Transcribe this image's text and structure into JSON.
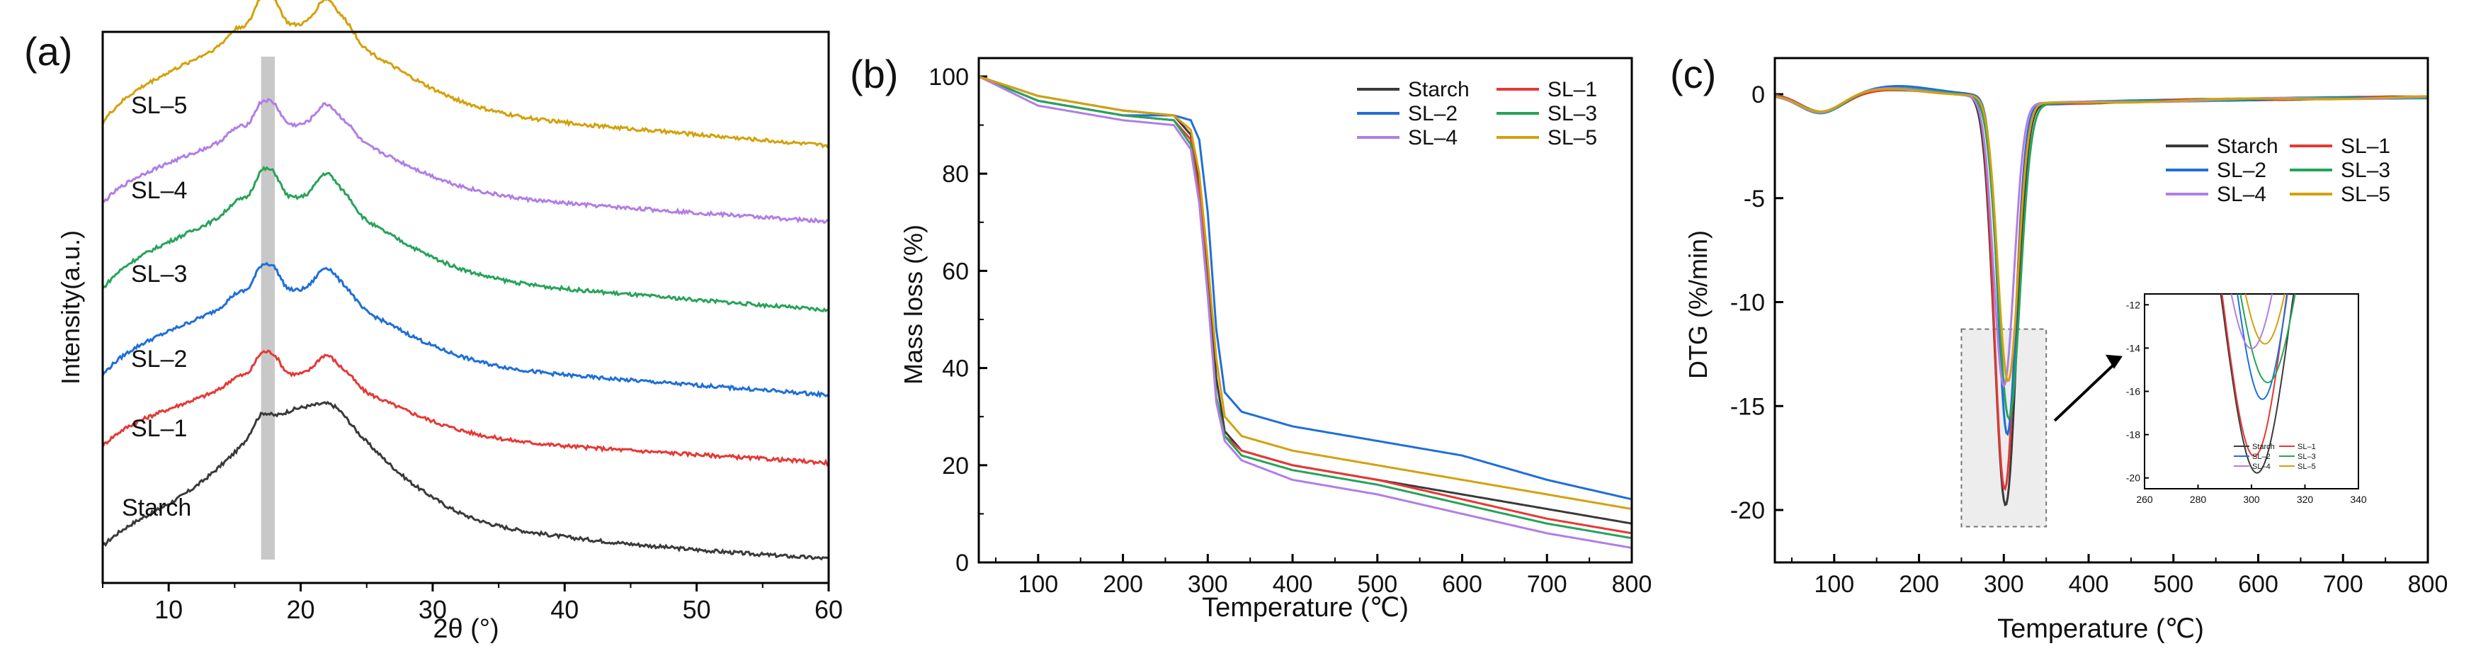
{
  "panels": {
    "a": {
      "label": "(a)"
    },
    "b": {
      "label": "(b)"
    },
    "c": {
      "label": "(c)"
    }
  },
  "colors": {
    "Starch": "#3a3a3a",
    "SL–1": "#e53935",
    "SL–2": "#1e6fd9",
    "SL–3": "#27a35a",
    "SL–4": "#b07ee6",
    "SL–5": "#d4a10c"
  },
  "chart_data": [
    {
      "id": "a",
      "type": "line",
      "title": "",
      "xlabel": "2θ (°)",
      "ylabel": "Intensity(a.u.)",
      "xlim": [
        5,
        60
      ],
      "xticks": [
        10,
        20,
        30,
        40,
        50,
        60
      ],
      "yticks_shown": false,
      "highlight_band_2theta": [
        17.0,
        17.5
      ],
      "series": [
        {
          "name": "Starch",
          "baseline": 0,
          "label": "Starch"
        },
        {
          "name": "SL–1",
          "baseline": 1,
          "label": "SL–1"
        },
        {
          "name": "SL–2",
          "baseline": 2,
          "label": "SL–2"
        },
        {
          "name": "SL–3",
          "baseline": 3,
          "label": "SL–3"
        },
        {
          "name": "SL–4",
          "baseline": 4,
          "label": "SL–4"
        },
        {
          "name": "SL–5",
          "baseline": 5,
          "label": "SL–5"
        }
      ],
      "peaks_2theta": [
        15.0,
        17.0,
        18.0,
        22.0,
        23.5
      ]
    },
    {
      "id": "b",
      "type": "line",
      "title": "",
      "xlabel": "Temperature (℃)",
      "ylabel": "Mass loss (%)",
      "xlim": [
        30,
        800
      ],
      "ylim": [
        0,
        100
      ],
      "xticks": [
        100,
        200,
        300,
        400,
        500,
        600,
        700,
        800
      ],
      "yticks": [
        0,
        20,
        40,
        60,
        80,
        100
      ],
      "legend": [
        "Starch",
        "SL–1",
        "SL–2",
        "SL–3",
        "SL–4",
        "SL–5"
      ],
      "legend_position": "top-right",
      "series": [
        {
          "name": "Starch",
          "x": [
            30,
            100,
            200,
            260,
            280,
            290,
            300,
            310,
            320,
            340,
            400,
            500,
            600,
            700,
            800
          ],
          "y": [
            100,
            96,
            93,
            92,
            88,
            78,
            60,
            38,
            27,
            23,
            20,
            17,
            14,
            11,
            8
          ]
        },
        {
          "name": "SL–1",
          "x": [
            30,
            100,
            200,
            260,
            280,
            290,
            300,
            310,
            320,
            340,
            400,
            500,
            600,
            700,
            800
          ],
          "y": [
            100,
            95,
            92,
            91,
            87,
            76,
            56,
            34,
            26,
            23,
            20,
            17,
            13,
            9,
            6
          ]
        },
        {
          "name": "SL–2",
          "x": [
            30,
            100,
            200,
            260,
            280,
            290,
            300,
            310,
            320,
            340,
            400,
            500,
            600,
            700,
            800
          ],
          "y": [
            100,
            95,
            92,
            92,
            91,
            87,
            72,
            48,
            35,
            31,
            28,
            25,
            22,
            17,
            13
          ]
        },
        {
          "name": "SL–3",
          "x": [
            30,
            100,
            200,
            260,
            280,
            290,
            300,
            310,
            320,
            340,
            400,
            500,
            600,
            700,
            800
          ],
          "y": [
            100,
            95,
            92,
            91,
            86,
            74,
            55,
            34,
            26,
            22,
            19,
            16,
            12,
            8,
            5
          ]
        },
        {
          "name": "SL–4",
          "x": [
            30,
            100,
            200,
            260,
            280,
            290,
            300,
            310,
            320,
            340,
            400,
            500,
            600,
            700,
            800
          ],
          "y": [
            100,
            94,
            91,
            90,
            85,
            74,
            55,
            33,
            25,
            21,
            17,
            14,
            10,
            6,
            3
          ]
        },
        {
          "name": "SL–5",
          "x": [
            30,
            100,
            200,
            260,
            280,
            290,
            300,
            310,
            320,
            340,
            400,
            500,
            600,
            700,
            800
          ],
          "y": [
            100,
            96,
            93,
            92,
            89,
            80,
            62,
            42,
            30,
            26,
            23,
            20,
            17,
            14,
            11
          ]
        }
      ]
    },
    {
      "id": "c",
      "type": "line",
      "title": "",
      "xlabel": "Temperature (℃)",
      "ylabel": "DTG (%/min)",
      "xlim": [
        30,
        800
      ],
      "ylim": [
        -22.5,
        0.8
      ],
      "xticks": [
        100,
        200,
        300,
        400,
        500,
        600,
        700,
        800
      ],
      "yticks": [
        -20,
        -15,
        -10,
        -5,
        0
      ],
      "legend": [
        "Starch",
        "SL–1",
        "SL–2",
        "SL–3",
        "SL–4",
        "SL–5"
      ],
      "legend_position": "top-right",
      "peak_temperature": [
        302,
        301,
        304,
        306,
        300,
        305
      ],
      "peak_dtg": [
        -19.6,
        -18.8,
        -16.1,
        -15.3,
        -13.8,
        -13.6
      ],
      "inset": {
        "xlim": [
          260,
          340
        ],
        "ylim": [
          -20.5,
          -11.5
        ],
        "xticks": [
          260,
          280,
          300,
          320,
          340
        ],
        "yticks": [
          -20,
          -18,
          -16,
          -14,
          -12
        ],
        "legend": [
          "Starch",
          "SL–1",
          "SL–2",
          "SL–3",
          "SL–4",
          "SL–5"
        ]
      }
    }
  ]
}
